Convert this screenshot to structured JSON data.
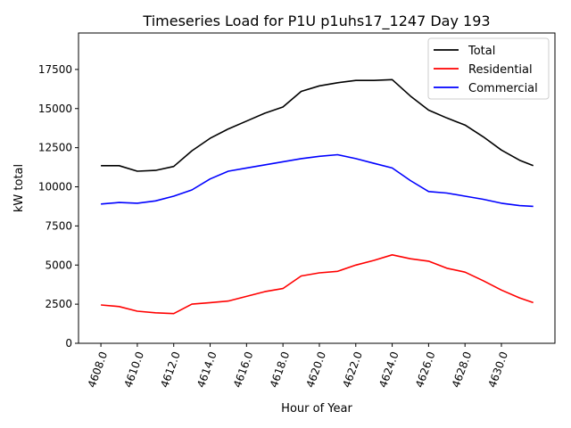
{
  "chart_data": {
    "type": "line",
    "title": "Timeseries Load for P1U p1uhs17_1247  Day 193",
    "xlabel": "Hour of Year",
    "ylabel": "kW total",
    "xlim": [
      4606.77,
      4632.94
    ],
    "ylim": [
      0,
      19830
    ],
    "xticks": [
      4608,
      4610,
      4612,
      4614,
      4616,
      4618,
      4620,
      4622,
      4624,
      4626,
      4628,
      4630
    ],
    "xtick_labels": [
      "4608.0",
      "4610.0",
      "4612.0",
      "4614.0",
      "4616.0",
      "4618.0",
      "4620.0",
      "4622.0",
      "4624.0",
      "4626.0",
      "4628.0",
      "4630.0"
    ],
    "yticks": [
      0,
      2500,
      5000,
      7500,
      10000,
      12500,
      15000,
      17500
    ],
    "ytick_labels": [
      "0",
      "2500",
      "5000",
      "7500",
      "10000",
      "12500",
      "15000",
      "17500"
    ],
    "legend_position": "top-right",
    "x": [
      4608,
      4609,
      4610,
      4611,
      4612,
      4613,
      4614,
      4615,
      4616,
      4617,
      4618,
      4619,
      4620,
      4621,
      4622,
      4623,
      4624,
      4625,
      4626,
      4627,
      4628,
      4629,
      4630,
      4631,
      4631.75
    ],
    "series": [
      {
        "name": "Total",
        "color": "#000000",
        "values": [
          11350,
          11350,
          11000,
          11050,
          11300,
          12300,
          13100,
          13700,
          14200,
          14700,
          15100,
          16100,
          16450,
          16650,
          16800,
          16800,
          16850,
          15800,
          14900,
          14400,
          13950,
          13200,
          12350,
          11700,
          11350
        ]
      },
      {
        "name": "Residential",
        "color": "#ff0000",
        "values": [
          2450,
          2350,
          2050,
          1950,
          1900,
          2500,
          2600,
          2700,
          3000,
          3300,
          3500,
          4300,
          4500,
          4600,
          5000,
          5300,
          5650,
          5400,
          5250,
          4800,
          4550,
          4000,
          3400,
          2900,
          2600
        ]
      },
      {
        "name": "Commercial",
        "color": "#0000ff",
        "values": [
          8900,
          9000,
          8950,
          9100,
          9400,
          9800,
          10500,
          11000,
          11200,
          11400,
          11600,
          11800,
          11950,
          12050,
          11800,
          11500,
          11200,
          10400,
          9700,
          9600,
          9400,
          9200,
          8950,
          8800,
          8750
        ]
      }
    ]
  }
}
